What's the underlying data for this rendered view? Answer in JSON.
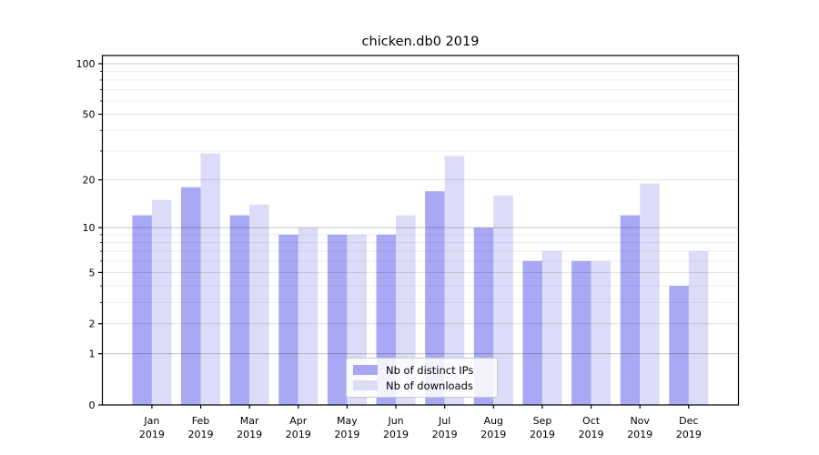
{
  "chart_data": {
    "type": "bar",
    "title": "chicken.db0 2019",
    "categories": [
      "Jan 2019",
      "Feb 2019",
      "Mar 2019",
      "Apr 2019",
      "May 2019",
      "Jun 2019",
      "Jul 2019",
      "Aug 2019",
      "Sep 2019",
      "Oct 2019",
      "Nov 2019",
      "Dec 2019"
    ],
    "series": [
      {
        "name": "Nb of distinct IPs",
        "color": "#a8a8f5",
        "values": [
          12,
          18,
          12,
          9,
          9,
          9,
          17,
          10,
          6,
          6,
          12,
          4
        ]
      },
      {
        "name": "Nb of downloads",
        "color": "#dcdcf8",
        "values": [
          15,
          29,
          14,
          10,
          9,
          12,
          28,
          16,
          7,
          6,
          19,
          7
        ]
      }
    ],
    "yscale": "log1p",
    "ylim": [
      0,
      110
    ],
    "ytick_labels": [
      "0",
      "1",
      "2",
      "5",
      "10",
      "20",
      "50",
      "100"
    ],
    "yticks": [
      0,
      1,
      2,
      5,
      10,
      20,
      50,
      100
    ],
    "decade_gridlines": [
      1,
      10,
      100
    ],
    "labeled_minor_gridlines": [
      2,
      5,
      20,
      50
    ],
    "minor_gridlines": [
      3,
      4,
      6,
      7,
      8,
      9,
      30,
      40,
      60,
      70,
      80,
      90
    ],
    "grid": true,
    "legend_position": "lower center",
    "xlabel": "",
    "ylabel": "",
    "colors": {
      "spine": "#000000",
      "tick_label": "#000000",
      "grid_major": "rgba(0,0,0,0.22)",
      "grid_labeled_minor": "rgba(0,0,0,0.12)",
      "grid_minor": "rgba(0,0,0,0.07)"
    }
  }
}
